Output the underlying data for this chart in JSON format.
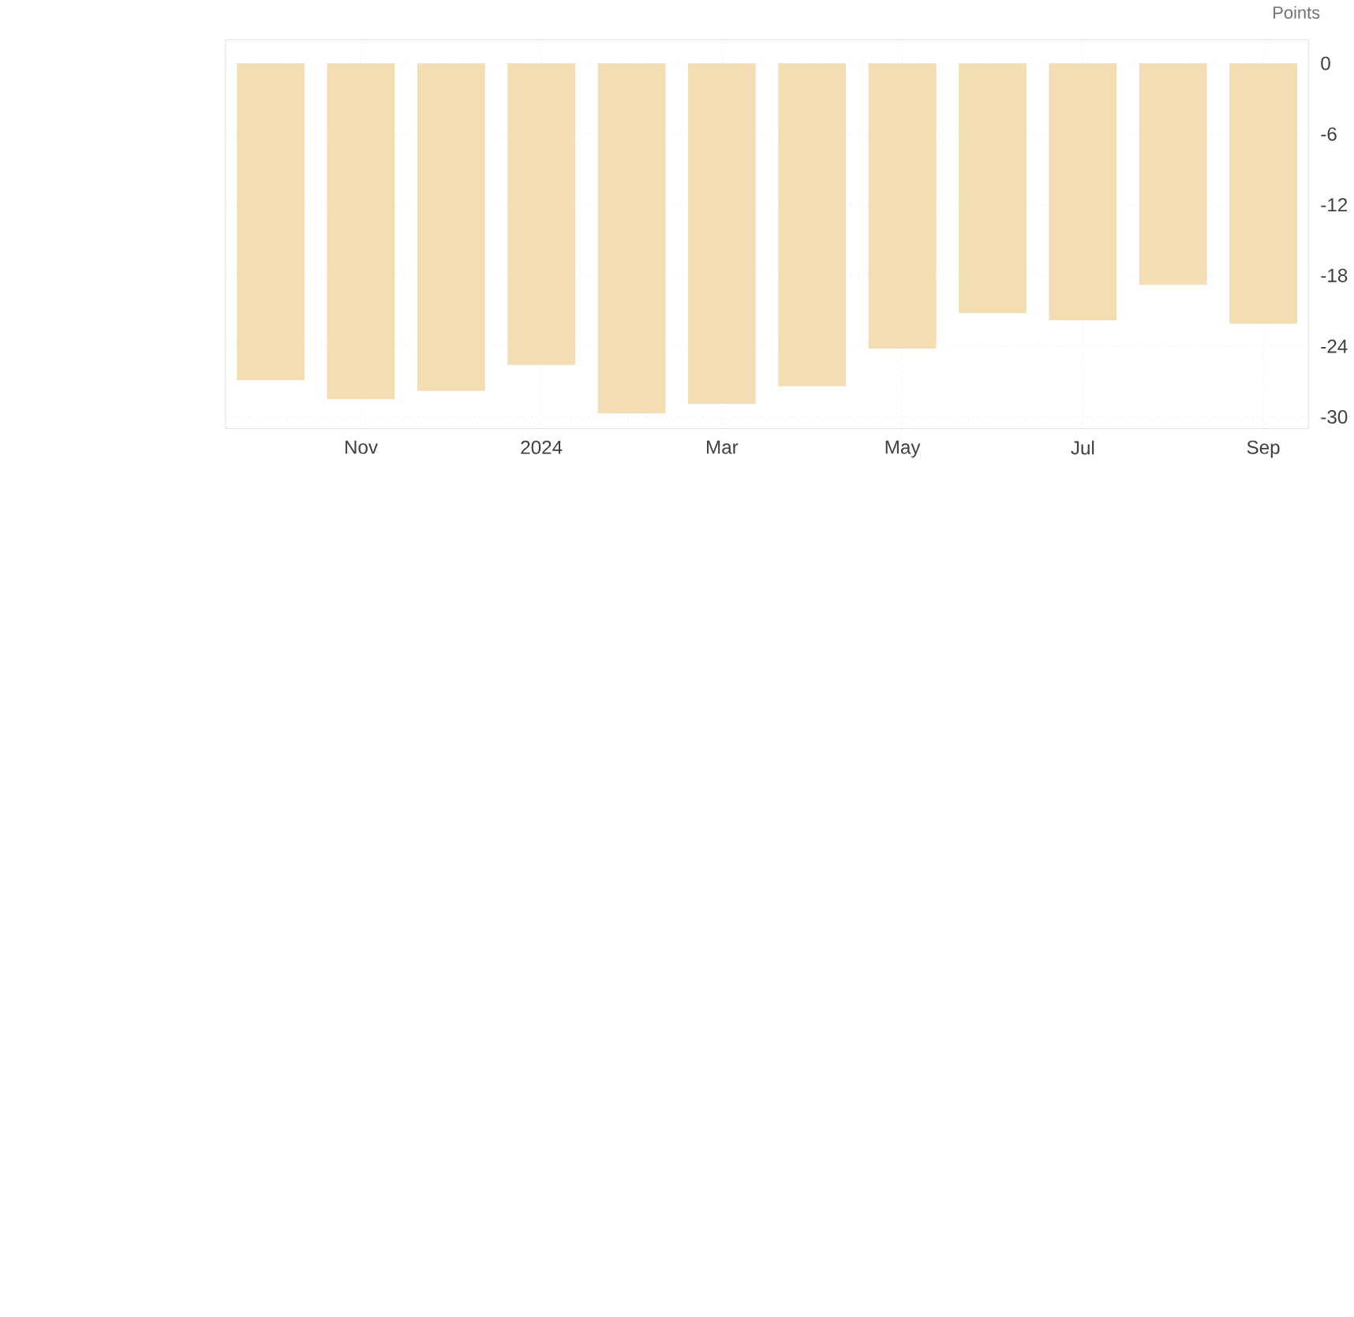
{
  "chart_data": {
    "type": "bar",
    "ylabel": "Points",
    "categories": [
      null,
      "Nov",
      null,
      "2024",
      null,
      "Mar",
      null,
      "May",
      null,
      "Jul",
      null,
      "Sep"
    ],
    "values": [
      -26.9,
      -28.5,
      -27.8,
      -25.6,
      -29.7,
      -28.9,
      -27.4,
      -24.2,
      -21.2,
      -21.8,
      -18.8,
      -22.1
    ],
    "color": "#f3ddb3",
    "ylim": [
      -31,
      2
    ],
    "yticks": [
      0,
      -6,
      -12,
      -18,
      -24,
      -30
    ],
    "grid": true
  }
}
